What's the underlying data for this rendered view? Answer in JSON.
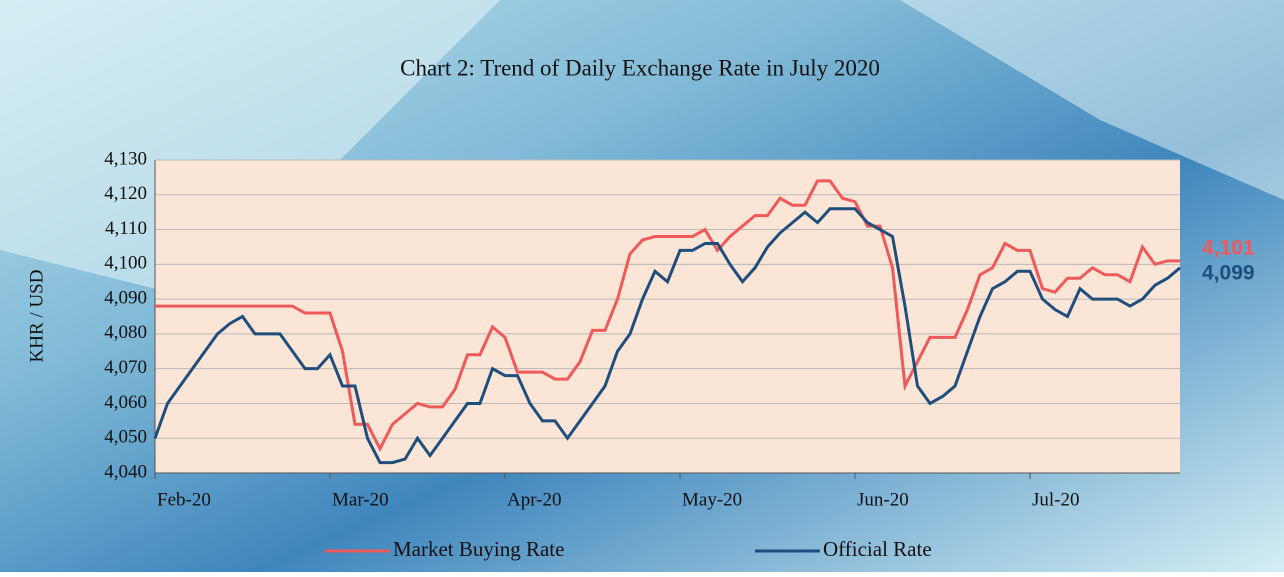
{
  "chart_data": {
    "type": "line",
    "title": "Chart 2: Trend of Daily Exchange Rate in July 2020",
    "y_label": "KHR / USD",
    "categories": [
      "Feb-20",
      null,
      null,
      null,
      null,
      null,
      null,
      null,
      null,
      null,
      null,
      null,
      null,
      null,
      "Mar-20",
      null,
      null,
      null,
      null,
      null,
      null,
      null,
      null,
      null,
      null,
      null,
      null,
      null,
      "Apr-20",
      null,
      null,
      null,
      null,
      null,
      null,
      null,
      null,
      null,
      null,
      null,
      null,
      null,
      "May-20",
      null,
      null,
      null,
      null,
      null,
      null,
      null,
      null,
      null,
      null,
      null,
      null,
      null,
      "Jun-20",
      null,
      null,
      null,
      null,
      null,
      null,
      null,
      null,
      null,
      null,
      null,
      null,
      null,
      "Jul-20",
      null,
      null,
      null,
      null,
      null,
      null,
      null,
      null,
      null,
      null,
      null,
      null
    ],
    "series": [
      {
        "name": "Market Buying Rate",
        "color": "#ee5a5a",
        "values": [
          4088,
          4088,
          4088,
          4088,
          4088,
          4088,
          4088,
          4088,
          4088,
          4088,
          4088,
          4088,
          4086,
          4086,
          4086,
          4075,
          4054,
          4054,
          4047,
          4054,
          4057,
          4060,
          4059,
          4059,
          4064,
          4074,
          4074,
          4082,
          4079,
          4069,
          4069,
          4069,
          4067,
          4067,
          4072,
          4081,
          4081,
          4090,
          4103,
          4107,
          4108,
          4108,
          4108,
          4108,
          4110,
          4104,
          4108,
          4111,
          4114,
          4114,
          4119,
          4117,
          4117,
          4124,
          4124,
          4119,
          4118,
          4111,
          4111,
          4099,
          4065,
          4072,
          4079,
          4079,
          4079,
          4087,
          4097,
          4099,
          4106,
          4104,
          4104,
          4093,
          4092,
          4096,
          4096,
          4099,
          4097,
          4097,
          4095,
          4105,
          4100,
          4101,
          4101
        ],
        "value_labels": [
          null,
          null,
          null,
          null,
          null,
          null,
          null,
          null,
          null,
          null,
          null,
          null,
          null,
          null,
          null,
          null,
          null,
          null,
          null,
          null,
          null,
          null,
          null,
          null,
          null,
          null,
          null,
          null,
          null,
          null,
          null,
          null,
          null,
          null,
          null,
          null,
          null,
          null,
          null,
          null,
          null,
          null,
          null,
          null,
          null,
          null,
          null,
          null,
          null,
          null,
          null,
          null,
          null,
          null,
          null,
          null,
          null,
          null,
          null,
          null,
          null,
          null,
          null,
          null,
          null,
          null,
          null,
          null,
          null,
          null,
          null,
          null,
          null,
          null,
          null,
          null,
          null,
          null,
          null,
          null,
          null,
          null,
          "4,101"
        ]
      },
      {
        "name": "Official Rate",
        "color": "#1f4e7c",
        "values": [
          4050,
          4060,
          4065,
          4070,
          4075,
          4080,
          4083,
          4085,
          4080,
          4080,
          4080,
          4075,
          4070,
          4070,
          4074,
          4065,
          4065,
          4050,
          4043,
          4043,
          4044,
          4050,
          4045,
          4050,
          4055,
          4060,
          4060,
          4070,
          4068,
          4068,
          4060,
          4055,
          4055,
          4050,
          4055,
          4060,
          4065,
          4075,
          4080,
          4090,
          4098,
          4095,
          4104,
          4104,
          4106,
          4106,
          4100,
          4095,
          4099,
          4105,
          4109,
          4112,
          4115,
          4112,
          4116,
          4116,
          4116,
          4112,
          4110,
          4108,
          4088,
          4065,
          4060,
          4062,
          4065,
          4075,
          4085,
          4093,
          4095,
          4098,
          4098,
          4090,
          4087,
          4085,
          4093,
          4090,
          4090,
          4090,
          4088,
          4090,
          4094,
          4096,
          4099
        ],
        "value_labels": [
          null,
          null,
          null,
          null,
          null,
          null,
          null,
          null,
          null,
          null,
          null,
          null,
          null,
          null,
          null,
          null,
          null,
          null,
          null,
          null,
          null,
          null,
          null,
          null,
          null,
          null,
          null,
          null,
          null,
          null,
          null,
          null,
          null,
          null,
          null,
          null,
          null,
          null,
          null,
          null,
          null,
          null,
          null,
          null,
          null,
          null,
          null,
          null,
          null,
          null,
          null,
          null,
          null,
          null,
          null,
          null,
          null,
          null,
          null,
          null,
          null,
          null,
          null,
          null,
          null,
          null,
          null,
          null,
          null,
          null,
          null,
          null,
          null,
          null,
          null,
          null,
          null,
          null,
          null,
          null,
          null,
          null,
          "4,099"
        ]
      }
    ],
    "ylim": [
      4040,
      4130
    ],
    "yticks": [
      {
        "value": 4040,
        "label": "4,040"
      },
      {
        "value": 4050,
        "label": "4,050"
      },
      {
        "value": 4060,
        "label": "4,060"
      },
      {
        "value": 4070,
        "label": "4,070"
      },
      {
        "value": 4080,
        "label": "4,080"
      },
      {
        "value": 4090,
        "label": "4,090"
      },
      {
        "value": 4100,
        "label": "4,100"
      },
      {
        "value": 4110,
        "label": "4,110"
      },
      {
        "value": 4120,
        "label": "4,120"
      },
      {
        "value": 4130,
        "label": "4,130"
      }
    ],
    "grid": true,
    "legend": "bottom"
  }
}
